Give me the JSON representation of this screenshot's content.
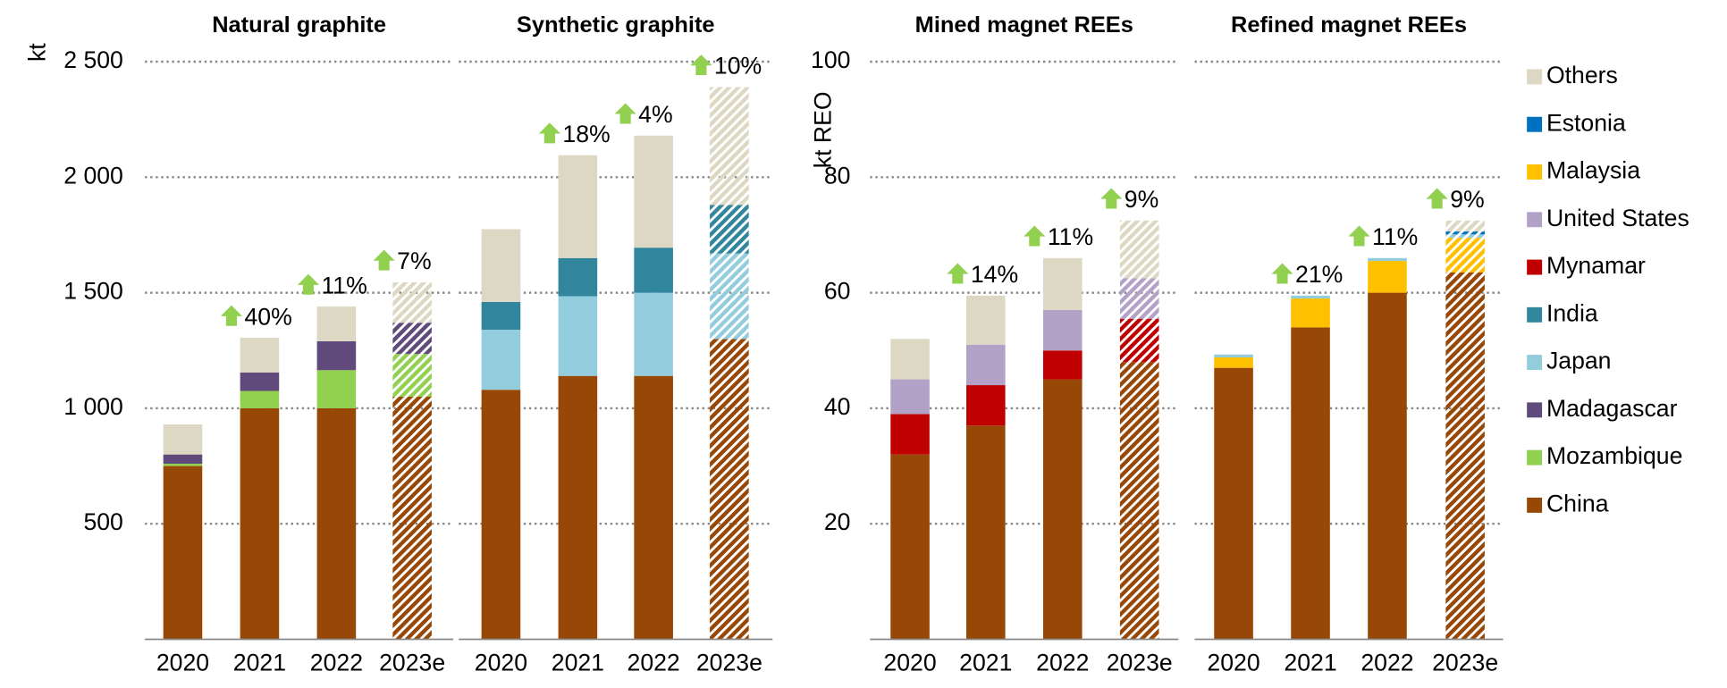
{
  "chart_data": [
    {
      "type": "bar",
      "stacked": true,
      "hatch": "last",
      "ylabel": "kt",
      "ylim": [
        0,
        2500
      ],
      "yticks": [
        500,
        {
          "value": 1000,
          "label": "1 000"
        },
        {
          "value": 1500,
          "label": "1 500"
        },
        {
          "value": 2000,
          "label": "2 000"
        },
        {
          "value": 2500,
          "label": "2 500"
        }
      ],
      "panels": [
        {
          "title": "Natural graphite",
          "categories": [
            "2020",
            "2021",
            "2022",
            "2023e"
          ],
          "series": [
            {
              "name": "China",
              "values": [
                750,
                1000,
                1000,
                1050
              ]
            },
            {
              "name": "Mozambique",
              "values": [
                10,
                75,
                165,
                185
              ]
            },
            {
              "name": "Madagascar",
              "values": [
                40,
                80,
                125,
                135
              ]
            },
            {
              "name": "Others",
              "values": [
                130,
                150,
                150,
                175
              ]
            }
          ],
          "growth": [
            null,
            40,
            11,
            7
          ],
          "growth_labels": [
            null,
            "40%",
            "11%",
            "7%"
          ]
        },
        {
          "title": "Synthetic graphite",
          "categories": [
            "2020",
            "2021",
            "2022",
            "2023e"
          ],
          "series": [
            {
              "name": "China",
              "values": [
                1080,
                1140,
                1140,
                1300
              ]
            },
            {
              "name": "Japan",
              "values": [
                260,
                345,
                360,
                370
              ]
            },
            {
              "name": "India",
              "values": [
                120,
                165,
                195,
                210
              ]
            },
            {
              "name": "Others",
              "values": [
                315,
                445,
                485,
                510
              ]
            }
          ],
          "growth": [
            null,
            18,
            4,
            10
          ],
          "growth_labels": [
            null,
            "18%",
            "4%",
            "10%"
          ]
        }
      ]
    },
    {
      "type": "bar",
      "stacked": true,
      "hatch": "last",
      "ylabel": "kt REO",
      "ylim": [
        0,
        100
      ],
      "yticks": [
        20,
        40,
        60,
        80,
        100
      ],
      "panels": [
        {
          "title": "Mined magnet REEs",
          "categories": [
            "2020",
            "2021",
            "2022",
            "2023e"
          ],
          "series": [
            {
              "name": "China",
              "values": [
                32,
                37,
                45,
                48
              ]
            },
            {
              "name": "Mynamar",
              "values": [
                7,
                7,
                5,
                7.5
              ]
            },
            {
              "name": "United States",
              "values": [
                6,
                7,
                7,
                7
              ]
            },
            {
              "name": "Others",
              "values": [
                7,
                8.5,
                9,
                10
              ]
            }
          ],
          "growth": [
            null,
            14,
            11,
            9
          ],
          "growth_labels": [
            null,
            "14%",
            "11%",
            "9%"
          ]
        },
        {
          "title": "Refined magnet REEs",
          "categories": [
            "2020",
            "2021",
            "2022",
            "2023e"
          ],
          "series": [
            {
              "name": "China",
              "values": [
                47,
                54,
                60,
                63.5
              ]
            },
            {
              "name": "Malaysia",
              "values": [
                1.8,
                5,
                5.5,
                6
              ]
            },
            {
              "name": "Japan",
              "values": [
                0.5,
                0.5,
                0.5,
                0.6
              ]
            },
            {
              "name": "Estonia",
              "values": [
                0,
                0,
                0,
                0.5
              ]
            },
            {
              "name": "Others",
              "values": [
                0,
                0,
                0,
                1.9
              ]
            }
          ],
          "growth": [
            null,
            21,
            11,
            9
          ],
          "growth_labels": [
            null,
            "21%",
            "11%",
            "9%"
          ]
        }
      ]
    }
  ],
  "legend": [
    {
      "name": "Others",
      "color": "#ddd8c4"
    },
    {
      "name": "Estonia",
      "color": "#0070c0"
    },
    {
      "name": "Malaysia",
      "color": "#ffc000"
    },
    {
      "name": "United States",
      "color": "#b3a2c7"
    },
    {
      "name": "Mynamar",
      "color": "#c00000"
    },
    {
      "name": "India",
      "color": "#31859c"
    },
    {
      "name": "Japan",
      "color": "#93cddd"
    },
    {
      "name": "Madagascar",
      "color": "#604a7b"
    },
    {
      "name": "Mozambique",
      "color": "#92d050"
    },
    {
      "name": "China",
      "color": "#974706"
    }
  ]
}
